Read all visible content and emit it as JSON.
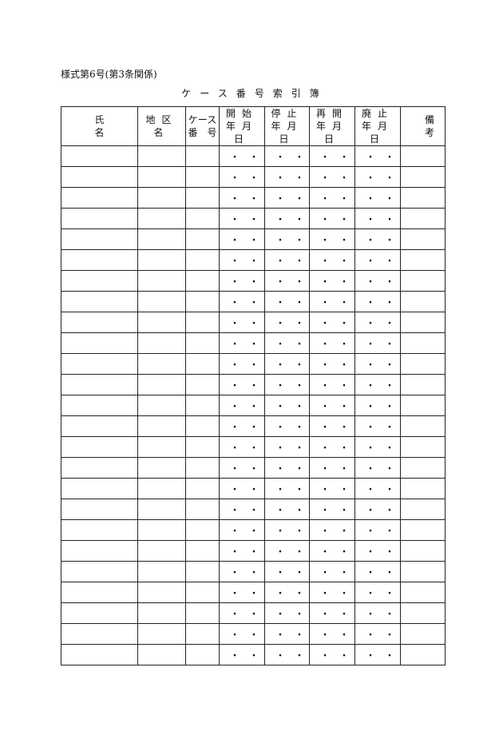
{
  "form_number": "様式第6号(第3条関係)",
  "title": "ケース番号索引簿",
  "headers": {
    "name": "氏名",
    "district": "地区名",
    "case_line1": "ケース",
    "case_line2": "番　号",
    "start_line1": "開始",
    "stop_line1": "停止",
    "resume_line1": "再開",
    "abolish_line1": "廃止",
    "date_line2": "年月日",
    "remarks": "備考"
  },
  "rows": [
    {
      "start": "・・",
      "stop": "・・",
      "resume": "・・",
      "abolish": "・・"
    },
    {
      "start": "・・",
      "stop": "・・",
      "resume": "・・",
      "abolish": "・・"
    },
    {
      "start": "・・",
      "stop": "・・",
      "resume": "・・",
      "abolish": "・・"
    },
    {
      "start": "・・",
      "stop": "・・",
      "resume": "・・",
      "abolish": "・・"
    },
    {
      "start": "・・",
      "stop": "・・",
      "resume": "・・",
      "abolish": "・・"
    },
    {
      "start": "・・",
      "stop": "・・",
      "resume": "・・",
      "abolish": "・・"
    },
    {
      "start": "・・",
      "stop": "・・",
      "resume": "・・",
      "abolish": "・・"
    },
    {
      "start": "・・",
      "stop": "・・",
      "resume": "・・",
      "abolish": "・・"
    },
    {
      "start": "・・",
      "stop": "・・",
      "resume": "・・",
      "abolish": "・・"
    },
    {
      "start": "・・",
      "stop": "・・",
      "resume": "・・",
      "abolish": "・・"
    },
    {
      "start": "・・",
      "stop": "・・",
      "resume": "・・",
      "abolish": "・・"
    },
    {
      "start": "・・",
      "stop": "・・",
      "resume": "・・",
      "abolish": "・・"
    },
    {
      "start": "・・",
      "stop": "・・",
      "resume": "・・",
      "abolish": "・・"
    },
    {
      "start": "・・",
      "stop": "・・",
      "resume": "・・",
      "abolish": "・・"
    },
    {
      "start": "・・",
      "stop": "・・",
      "resume": "・・",
      "abolish": "・・"
    },
    {
      "start": "・・",
      "stop": "・・",
      "resume": "・・",
      "abolish": "・・"
    },
    {
      "start": "・・",
      "stop": "・・",
      "resume": "・・",
      "abolish": "・・"
    },
    {
      "start": "・・",
      "stop": "・・",
      "resume": "・・",
      "abolish": "・・"
    },
    {
      "start": "・・",
      "stop": "・・",
      "resume": "・・",
      "abolish": "・・"
    },
    {
      "start": "・・",
      "stop": "・・",
      "resume": "・・",
      "abolish": "・・"
    },
    {
      "start": "・・",
      "stop": "・・",
      "resume": "・・",
      "abolish": "・・"
    },
    {
      "start": "・・",
      "stop": "・・",
      "resume": "・・",
      "abolish": "・・"
    },
    {
      "start": "・・",
      "stop": "・・",
      "resume": "・・",
      "abolish": "・・"
    },
    {
      "start": "・・",
      "stop": "・・",
      "resume": "・・",
      "abolish": "・・"
    },
    {
      "start": "・・",
      "stop": "・・",
      "resume": "・・",
      "abolish": "・・"
    }
  ]
}
